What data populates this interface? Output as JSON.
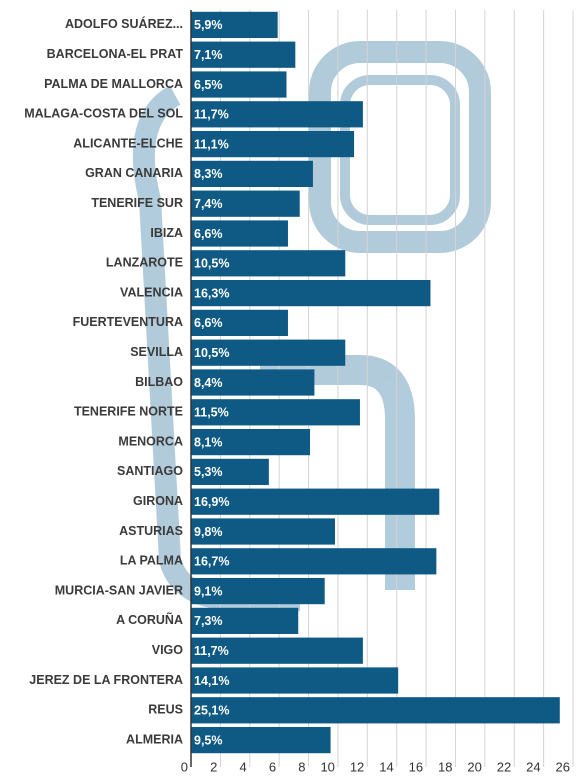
{
  "chart_data": {
    "type": "bar",
    "orientation": "horizontal",
    "color": "#0e5a85",
    "categories": [
      "ADOLFO SUÁREZ...",
      "BARCELONA-EL PRAT",
      "PALMA DE MALLORCA",
      "MALAGA-COSTA DEL SOL",
      "ALICANTE-ELCHE",
      "GRAN CANARIA",
      "TENERIFE SUR",
      "IBIZA",
      "LANZAROTE",
      "VALENCIA",
      "FUERTEVENTURA",
      "SEVILLA",
      "BILBAO",
      "TENERIFE NORTE",
      "MENORCA",
      "SANTIAGO",
      "GIRONA",
      "ASTURIAS",
      "LA PALMA",
      "MURCIA-SAN JAVIER",
      "A CORUÑA",
      "VIGO",
      "JEREZ DE LA FRONTERA",
      "REUS",
      "ALMERIA"
    ],
    "values": [
      5.9,
      7.1,
      6.5,
      11.7,
      11.1,
      8.3,
      7.4,
      6.6,
      10.5,
      16.3,
      6.6,
      10.5,
      8.4,
      11.5,
      8.1,
      5.3,
      16.9,
      9.8,
      16.7,
      9.1,
      7.3,
      11.7,
      14.1,
      25.1,
      9.5
    ],
    "value_labels": [
      "5,9%",
      "7,1%",
      "6,5%",
      "11,7%",
      "11,1%",
      "8,3%",
      "7,4%",
      "6,6%",
      "10,5%",
      "16,3%",
      "6,6%",
      "10,5%",
      "8,4%",
      "11,5%",
      "8,1%",
      "5,3%",
      "16,9%",
      "9,8%",
      "16,7%",
      "9,1%",
      "7,3%",
      "11,7%",
      "14,1%",
      "25,1%",
      "9,5%"
    ],
    "xlim": [
      0,
      26
    ],
    "xticks": [
      0,
      2,
      4,
      6,
      8,
      10,
      12,
      14,
      16,
      18,
      20,
      22,
      24,
      26
    ],
    "grid": true
  }
}
